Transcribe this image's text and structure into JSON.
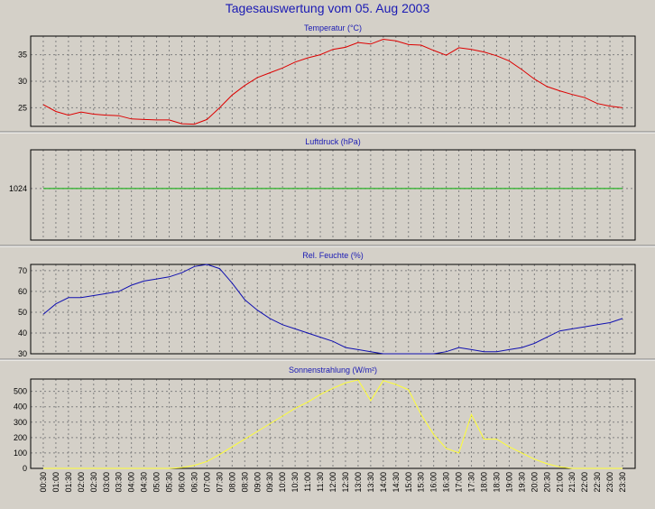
{
  "title": "Tagesauswertung vom 05. Aug 2003",
  "chart_data": [
    {
      "type": "line",
      "title": "Temperatur (°C)",
      "color": "#dd0000",
      "ylim": [
        21.5,
        38.5
      ],
      "yticks": [
        25,
        30,
        35
      ],
      "x": [
        "00:30",
        "01:00",
        "01:30",
        "02:00",
        "02:30",
        "03:00",
        "03:30",
        "04:00",
        "04:30",
        "05:00",
        "05:30",
        "06:00",
        "06:30",
        "07:00",
        "07:30",
        "08:00",
        "08:30",
        "09:00",
        "09:30",
        "10:00",
        "10:30",
        "11:00",
        "11:30",
        "12:00",
        "12:30",
        "13:00",
        "13:30",
        "14:00",
        "14:30",
        "15:00",
        "15:30",
        "16:00",
        "16:30",
        "17:00",
        "17:30",
        "18:00",
        "18:30",
        "19:00",
        "19:30",
        "20:00",
        "20:30",
        "21:00",
        "21:30",
        "22:00",
        "22:30",
        "23:00",
        "23:30"
      ],
      "values": [
        25.6,
        24.3,
        23.6,
        24.2,
        23.8,
        23.6,
        23.5,
        22.9,
        22.8,
        22.7,
        22.7,
        22.0,
        21.9,
        22.8,
        25.0,
        27.4,
        29.2,
        30.7,
        31.6,
        32.5,
        33.6,
        34.4,
        35.0,
        36.0,
        36.4,
        37.3,
        37.0,
        37.9,
        37.6,
        36.9,
        36.8,
        35.8,
        34.9,
        36.3,
        36.0,
        35.5,
        34.8,
        33.8,
        32.2,
        30.4,
        29.0,
        28.2,
        27.5,
        26.9,
        25.8,
        25.3,
        25.0
      ]
    },
    {
      "type": "line",
      "title": "Luftdruck (hPa)",
      "color": "#00aa00",
      "ylim": [
        1020,
        1027
      ],
      "yticks": [
        1024
      ],
      "x": [
        "00:30",
        "01:00",
        "01:30",
        "02:00",
        "02:30",
        "03:00",
        "03:30",
        "04:00",
        "04:30",
        "05:00",
        "05:30",
        "06:00",
        "06:30",
        "07:00",
        "07:30",
        "08:00",
        "08:30",
        "09:00",
        "09:30",
        "10:00",
        "10:30",
        "11:00",
        "11:30",
        "12:00",
        "12:30",
        "13:00",
        "13:30",
        "14:00",
        "14:30",
        "15:00",
        "15:30",
        "16:00",
        "16:30",
        "17:00",
        "17:30",
        "18:00",
        "18:30",
        "19:00",
        "19:30",
        "20:00",
        "20:30",
        "21:00",
        "21:30",
        "22:00",
        "22:30",
        "23:00",
        "23:30"
      ],
      "values": [
        1024,
        1024,
        1024,
        1024,
        1024,
        1024,
        1024,
        1024,
        1024,
        1024,
        1024,
        1024,
        1024,
        1024,
        1024,
        1024,
        1024,
        1024,
        1024,
        1024,
        1024,
        1024,
        1024,
        1024,
        1024,
        1024,
        1024,
        1024,
        1024,
        1024,
        1024,
        1024,
        1024,
        1024,
        1024,
        1024,
        1024,
        1024,
        1024,
        1024,
        1024,
        1024,
        1024,
        1024,
        1024,
        1024,
        1024
      ]
    },
    {
      "type": "line",
      "title": "Rel. Feuchte (%)",
      "color": "#1010b0",
      "ylim": [
        30,
        73
      ],
      "yticks": [
        30,
        40,
        50,
        60,
        70
      ],
      "x": [
        "00:30",
        "01:00",
        "01:30",
        "02:00",
        "02:30",
        "03:00",
        "03:30",
        "04:00",
        "04:30",
        "05:00",
        "05:30",
        "06:00",
        "06:30",
        "07:00",
        "07:30",
        "08:00",
        "08:30",
        "09:00",
        "09:30",
        "10:00",
        "10:30",
        "11:00",
        "11:30",
        "12:00",
        "12:30",
        "13:00",
        "13:30",
        "14:00",
        "14:30",
        "15:00",
        "15:30",
        "16:00",
        "16:30",
        "17:00",
        "17:30",
        "18:00",
        "18:30",
        "19:00",
        "19:30",
        "20:00",
        "20:30",
        "21:00",
        "21:30",
        "22:00",
        "22:30",
        "23:00",
        "23:30"
      ],
      "values": [
        49,
        54,
        57,
        57,
        58,
        59,
        60,
        63,
        65,
        66,
        67,
        69,
        72,
        73,
        71,
        64,
        56,
        51,
        47,
        44,
        42,
        40,
        38,
        36,
        33,
        32,
        31,
        30,
        30,
        30,
        30,
        30,
        31,
        33,
        32,
        31,
        31,
        32,
        33,
        35,
        38,
        41,
        42,
        43,
        44,
        45,
        47
      ]
    },
    {
      "type": "line",
      "title": "Sonnenstrahlung (W/m²)",
      "color": "#ffff33",
      "ylim": [
        0,
        580
      ],
      "yticks": [
        0,
        100,
        200,
        300,
        400,
        500
      ],
      "x": [
        "00:30",
        "01:00",
        "01:30",
        "02:00",
        "02:30",
        "03:00",
        "03:30",
        "04:00",
        "04:30",
        "05:00",
        "05:30",
        "06:00",
        "06:30",
        "07:00",
        "07:30",
        "08:00",
        "08:30",
        "09:00",
        "09:30",
        "10:00",
        "10:30",
        "11:00",
        "11:30",
        "12:00",
        "12:30",
        "13:00",
        "13:30",
        "14:00",
        "14:30",
        "15:00",
        "15:30",
        "16:00",
        "16:30",
        "17:00",
        "17:30",
        "18:00",
        "18:30",
        "19:00",
        "19:30",
        "20:00",
        "20:30",
        "21:00",
        "21:30",
        "22:00",
        "22:30",
        "23:00",
        "23:30"
      ],
      "values": [
        0,
        0,
        0,
        0,
        0,
        0,
        0,
        0,
        0,
        0,
        0,
        5,
        20,
        45,
        90,
        140,
        190,
        240,
        290,
        340,
        390,
        430,
        480,
        520,
        555,
        575,
        440,
        570,
        545,
        510,
        350,
        220,
        130,
        100,
        350,
        190,
        190,
        140,
        100,
        60,
        30,
        10,
        0,
        0,
        0,
        0,
        0
      ]
    }
  ]
}
